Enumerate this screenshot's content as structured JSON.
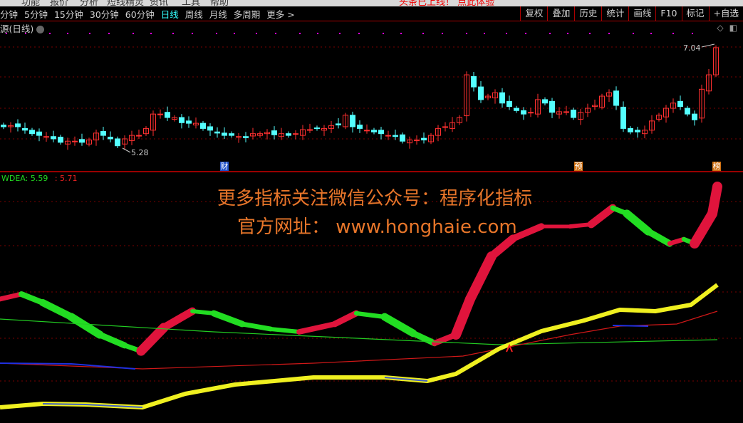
{
  "menu": {
    "items": [
      "功能",
      "报价",
      "分析",
      "短线精灵",
      "资讯",
      "工具",
      "帮助"
    ],
    "notice": "头条已上线！ 点此体验"
  },
  "toolbar": {
    "periods": [
      "分钟",
      "5分钟",
      "15分钟",
      "30分钟",
      "60分钟",
      "日线",
      "周线",
      "月线",
      "多周期",
      "更多 >"
    ],
    "active_period": "日线",
    "tools": [
      "复权",
      "叠加",
      "历史",
      "统计",
      "画线",
      "F10",
      "标记",
      "+自选"
    ]
  },
  "chart": {
    "title": "源(日线)",
    "high_label": "7.04",
    "low_label": "5.28",
    "markers": [
      {
        "text": "财",
        "color": "#1e50c8"
      },
      {
        "text": "预",
        "color": "#d07010"
      },
      {
        "text": "榜",
        "color": "#d07010"
      }
    ],
    "closes": [
      5.67,
      5.69,
      5.67,
      5.61,
      5.55,
      5.52,
      5.5,
      5.46,
      5.4,
      5.42,
      5.42,
      5.4,
      5.44,
      5.56,
      5.52,
      5.46,
      5.34,
      5.46,
      5.52,
      5.52,
      5.64,
      5.89,
      5.89,
      5.83,
      5.83,
      5.74,
      5.73,
      5.73,
      5.64,
      5.61,
      5.56,
      5.52,
      5.52,
      5.5,
      5.48,
      5.55,
      5.55,
      5.57,
      5.53,
      5.55,
      5.52,
      5.55,
      5.62,
      5.62,
      5.64,
      5.64,
      5.69,
      5.7,
      5.87,
      5.67,
      5.64,
      5.61,
      5.58,
      5.55,
      5.52,
      5.5,
      5.42,
      5.44,
      5.44,
      5.44,
      5.52,
      5.64,
      5.67,
      5.74,
      5.83,
      6.57,
      6.36,
      6.14,
      6.2,
      6.26,
      6.08,
      6.02,
      5.95,
      5.89,
      5.92,
      6.14,
      6.08,
      5.92,
      5.93,
      5.93,
      5.83,
      5.92,
      5.99,
      6.04,
      6.2,
      6.26,
      6.04,
      5.64,
      5.58,
      5.58,
      5.61,
      5.77,
      5.87,
      5.99,
      6.08,
      6.02,
      5.89,
      5.79,
      6.32,
      6.57,
      7.04
    ],
    "up_color": "#ff3030",
    "down_color": "#54ffff"
  },
  "indicator": {
    "name": "WDEA:",
    "value1": "5.59",
    "value2": ": 5.71",
    "rise_color": "#e0143c",
    "fall_color": "#22dd22"
  },
  "watermark": {
    "line1": "更多指标关注微信公众号：程序化指标",
    "line2": "官方网址： www.honghaie.com"
  }
}
